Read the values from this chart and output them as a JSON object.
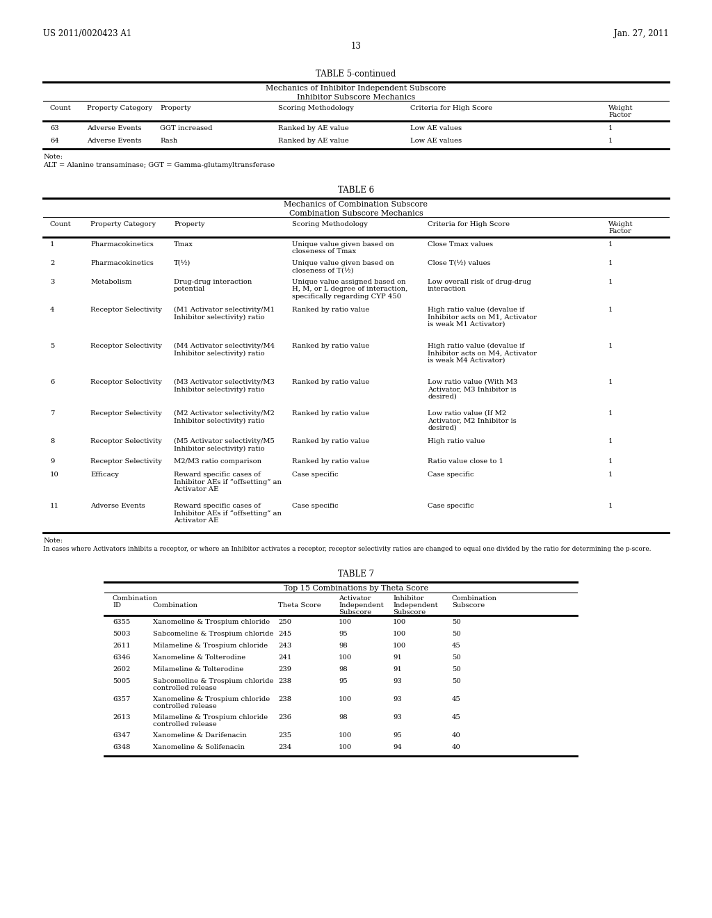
{
  "header_left": "US 2011/0020423 A1",
  "header_right": "Jan. 27, 2011",
  "page_number": "13",
  "bg_color": "#ffffff",
  "table5_title": "TABLE 5-continued",
  "table5_subtitle1": "Mechanics of Inhibitor Independent Subscore",
  "table5_subtitle2": "Inhibitor Subscore Mechanics",
  "table5_col_labels": [
    "Count",
    "Property Category",
    "Property",
    "Scoring Methodology",
    "Criteria for High Score",
    "Weight\nFactor"
  ],
  "table5_rows": [
    [
      "63",
      "Adverse Events",
      "GGT increased",
      "Ranked by AE value",
      "Low AE values",
      "1"
    ],
    [
      "64",
      "Adverse Events",
      "Rash",
      "Ranked by AE value",
      "Low AE values",
      "1"
    ]
  ],
  "table5_note1": "Note:",
  "table5_note2": "ALT = Alanine transaminase; GGT = Gamma-glutamyltransferase",
  "table6_title": "TABLE 6",
  "table6_subtitle1": "Mechanics of Combination Subscore",
  "table6_subtitle2": "Combination Subscore Mechanics",
  "table6_col_labels": [
    "Count",
    "Property Category",
    "Property",
    "Scoring Methodology",
    "Criteria for High Score",
    "Weight\nFactor"
  ],
  "table6_rows": [
    [
      "1",
      "Pharmacokinetics",
      "Tmax",
      "Unique value given based on\ncloseness of Tmax",
      "Close Tmax values",
      "1"
    ],
    [
      "2",
      "Pharmacokinetics",
      "T(½)",
      "Unique value given based on\ncloseness of T(½)",
      "Close T(½) values",
      "1"
    ],
    [
      "3",
      "Metabolism",
      "Drug-drug interaction\npotential",
      "Unique value assigned based on\nH, M, or L degree of interaction,\nspecifically regarding CYP 450",
      "Low overall risk of drug-drug\ninteraction",
      "1"
    ],
    [
      "4",
      "Receptor Selectivity",
      "(M1 Activator selectivity/M1\nInhibitor selectivity) ratio",
      "Ranked by ratio value",
      "High ratio value (devalue if\nInhibitor acts on M1, Activator\nis weak M1 Activator)",
      "1"
    ],
    [
      "5",
      "Receptor Selectivity",
      "(M4 Activator selectivity/M4\nInhibitor selectivity) ratio",
      "Ranked by ratio value",
      "High ratio value (devalue if\nInhibitor acts on M4, Activator\nis weak M4 Activator)",
      "1"
    ],
    [
      "6",
      "Receptor Selectivity",
      "(M3 Activator selectivity/M3\nInhibitor selectivity) ratio",
      "Ranked by ratio value",
      "Low ratio value (With M3\nActivator, M3 Inhibitor is\ndesired)",
      "1"
    ],
    [
      "7",
      "Receptor Selectivity",
      "(M2 Activator selectivity/M2\nInhibitor selectivity) ratio",
      "Ranked by ratio value",
      "Low ratio value (If M2\nActivator, M2 Inhibitor is\ndesired)",
      "1"
    ],
    [
      "8",
      "Receptor Selectivity",
      "(M5 Activator selectivity/M5\nInhibitor selectivity) ratio",
      "Ranked by ratio value",
      "High ratio value",
      "1"
    ],
    [
      "9",
      "Receptor Selectivity",
      "M2/M3 ratio comparison",
      "Ranked by ratio value",
      "Ratio value close to 1",
      "1"
    ],
    [
      "10",
      "Efficacy",
      "Reward specific cases of\nInhibitor AEs if “offset​ting” an\nActivator AE",
      "Case specific",
      "Case specific",
      "1"
    ],
    [
      "11",
      "Adverse Events",
      "Reward specific cases of\nInhibitor AEs if “offset​ting” an\nActivator AE",
      "Case specific",
      "Case specific",
      "1"
    ]
  ],
  "table6_note1": "Note:",
  "table6_note2": "In cases where Activators inhibits a receptor, or where an Inhibitor activates a receptor, receptor selectivity ratios are changed to equal one divided by the ratio for determining the p-score.",
  "table7_title": "TABLE 7",
  "table7_subtitle": "Top 15 Combinations by Theta Score",
  "table7_col_labels": [
    "Combination\nID",
    "Combination",
    "Theta Score",
    "Activator\nIndependent\nSubscore",
    "Inhibitor\nIndependent\nSubscore",
    "Combination\nSubscore"
  ],
  "table7_rows": [
    [
      "6355",
      "Xanomeline & Trospium chloride",
      "250",
      "100",
      "100",
      "50"
    ],
    [
      "5003",
      "Sabcomeline & Trospium chloride",
      "245",
      "95",
      "100",
      "50"
    ],
    [
      "2611",
      "Milameline & Trospium chloride",
      "243",
      "98",
      "100",
      "45"
    ],
    [
      "6346",
      "Xanomeline & Tolterodine",
      "241",
      "100",
      "91",
      "50"
    ],
    [
      "2602",
      "Milameline & Tolterodine",
      "239",
      "98",
      "91",
      "50"
    ],
    [
      "5005",
      "Sabcomeline & Trospium chloride\ncontrolled release",
      "238",
      "95",
      "93",
      "50"
    ],
    [
      "6357",
      "Xanomeline & Trospium chloride\ncontrolled release",
      "238",
      "100",
      "93",
      "45"
    ],
    [
      "2613",
      "Milameline & Trospium chloride\ncontrolled release",
      "236",
      "98",
      "93",
      "45"
    ],
    [
      "6347",
      "Xanomeline & Darifenacin",
      "235",
      "100",
      "95",
      "40"
    ],
    [
      "6348",
      "Xanomeline & Solifenacin",
      "234",
      "100",
      "94",
      "40"
    ]
  ]
}
